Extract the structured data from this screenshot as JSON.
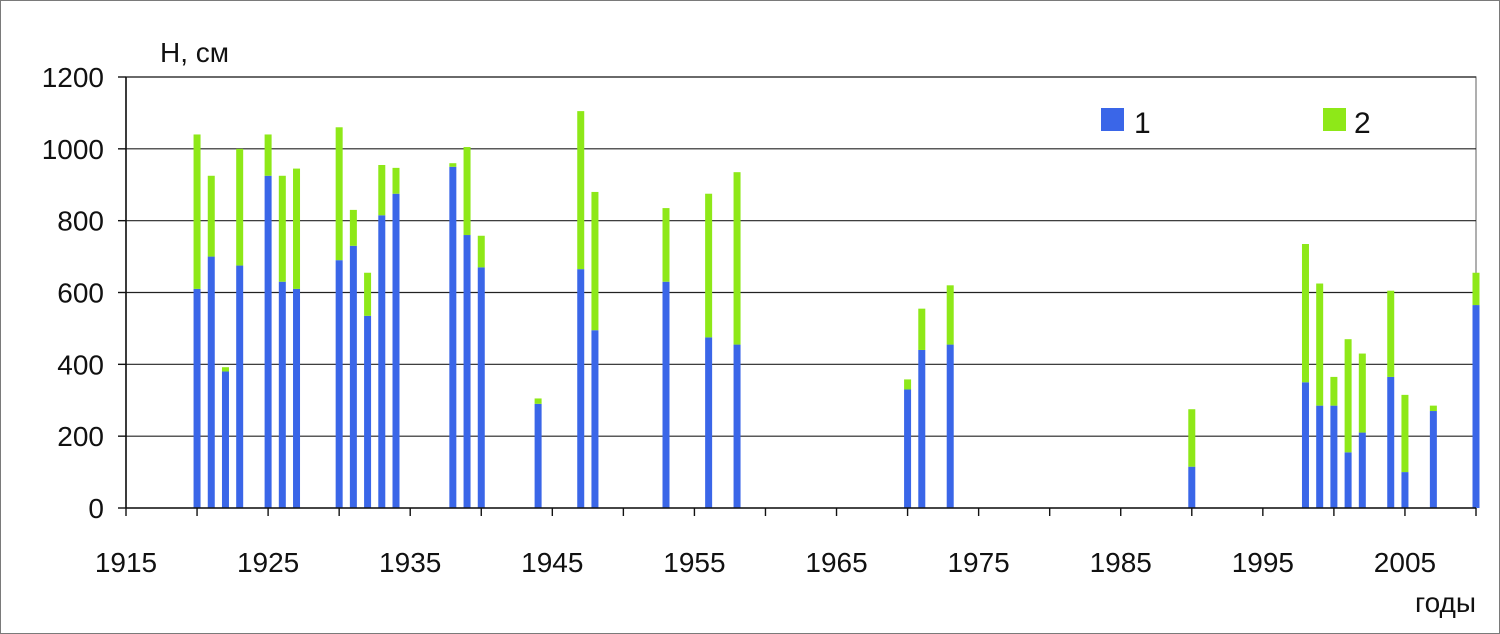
{
  "chart_data": {
    "type": "bar",
    "stacked": true,
    "ylabel": "Н, см",
    "xlabel": "годы",
    "xlim": [
      1915,
      2010
    ],
    "ylim": [
      0,
      1200
    ],
    "xticks": [
      1915,
      1925,
      1935,
      1945,
      1955,
      1965,
      1975,
      1985,
      1995,
      2005
    ],
    "yticks": [
      0,
      200,
      400,
      600,
      800,
      1000,
      1200
    ],
    "grid": true,
    "legend_position": "top-right",
    "colors": {
      "1": "#3a66e8",
      "2": "#8ee818"
    },
    "series": [
      {
        "name": "1",
        "color": "#3a66e8",
        "x": [
          1920,
          1921,
          1922,
          1923,
          1925,
          1926,
          1927,
          1930,
          1931,
          1932,
          1933,
          1934,
          1938,
          1939,
          1940,
          1944,
          1947,
          1948,
          1953,
          1956,
          1958,
          1970,
          1971,
          1973,
          1990,
          1998,
          1999,
          2000,
          2001,
          2002,
          2004,
          2005,
          2007,
          2010
        ],
        "values": [
          610,
          700,
          380,
          675,
          925,
          630,
          610,
          690,
          730,
          535,
          815,
          875,
          950,
          760,
          670,
          290,
          665,
          495,
          630,
          475,
          455,
          330,
          440,
          455,
          115,
          350,
          285,
          285,
          155,
          210,
          365,
          100,
          270,
          565
        ]
      },
      {
        "name": "2",
        "color": "#8ee818",
        "x": [
          1920,
          1921,
          1922,
          1923,
          1925,
          1926,
          1927,
          1930,
          1931,
          1932,
          1933,
          1934,
          1938,
          1939,
          1940,
          1944,
          1947,
          1948,
          1953,
          1956,
          1958,
          1970,
          1971,
          1973,
          1990,
          1998,
          1999,
          2000,
          2001,
          2002,
          2004,
          2005,
          2007,
          2010
        ],
        "values": [
          430,
          225,
          12,
          325,
          115,
          295,
          335,
          370,
          100,
          120,
          140,
          72,
          10,
          245,
          88,
          15,
          440,
          385,
          205,
          400,
          480,
          28,
          115,
          165,
          160,
          385,
          340,
          80,
          315,
          220,
          240,
          215,
          15,
          90
        ]
      }
    ]
  }
}
